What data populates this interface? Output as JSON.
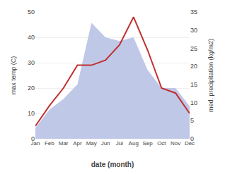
{
  "chart_data": {
    "type": "line",
    "xlabel": "date (month)",
    "ylabel": "max temp (C)",
    "y2label": "med. precipitation (kg/m2)",
    "categories": [
      "Jan",
      "Feb",
      "Mar",
      "Apr",
      "May",
      "Jun",
      "Jul",
      "Aug",
      "Sep",
      "Oct",
      "Nov",
      "Dec"
    ],
    "series": [
      {
        "type": "area",
        "color": "#c0c8e8",
        "axis": "y2",
        "values": [
          3,
          8,
          11,
          15,
          32,
          28,
          27,
          28,
          19,
          14,
          14,
          9
        ]
      },
      {
        "type": "line",
        "color": "#c03030",
        "values": [
          5,
          13,
          20,
          29,
          29,
          31,
          37,
          48,
          35,
          20,
          18,
          10
        ]
      }
    ],
    "ylim": [
      0,
      50
    ],
    "yticks": [
      0,
      10,
      20,
      30,
      40,
      50
    ],
    "y2lim": [
      0,
      35
    ],
    "y2ticks": [
      0,
      5,
      10,
      15,
      20,
      25,
      30,
      35
    ],
    "grid": true
  }
}
